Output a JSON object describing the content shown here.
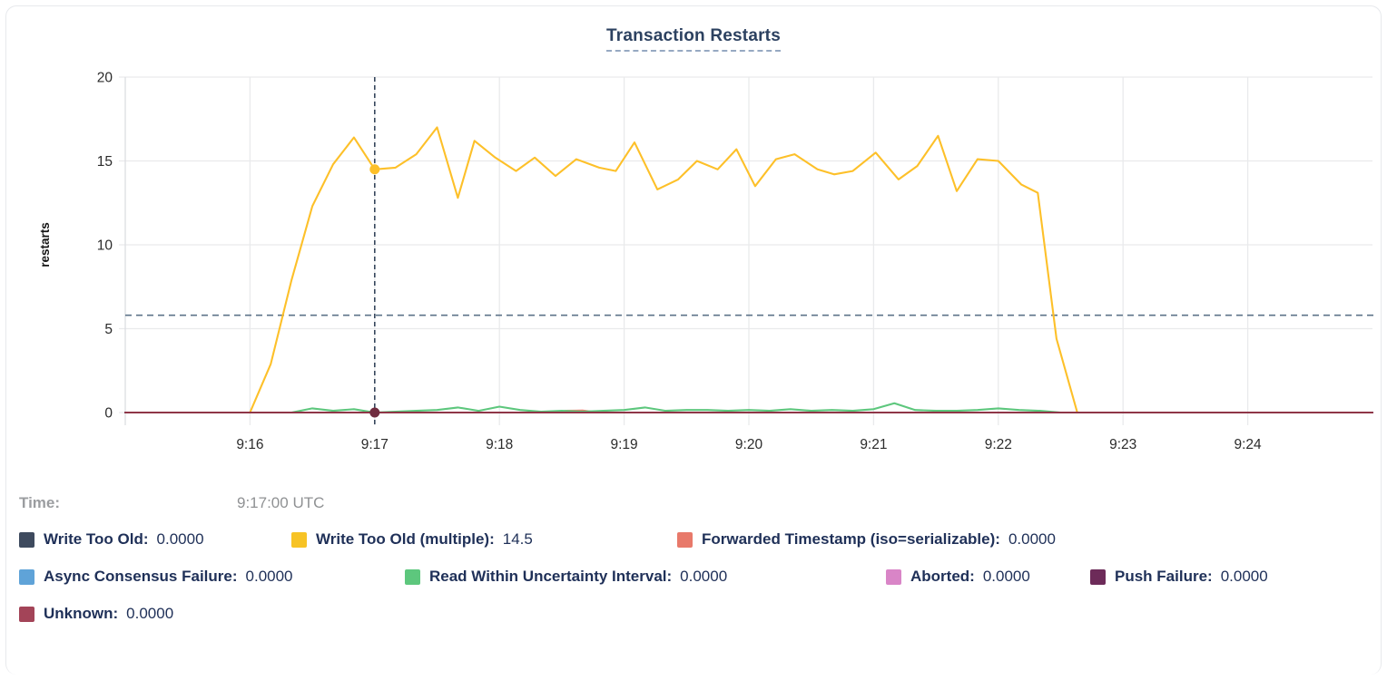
{
  "title": "Transaction Restarts",
  "tooltip": {
    "time_label": "Time:",
    "time_value": "9:17:00 UTC"
  },
  "legend": {
    "rows": [
      {
        "items": [
          {
            "label": "Write Too Old:",
            "value": "0.0000",
            "color": "#3e4a5e"
          },
          {
            "label": "Write Too Old (multiple):",
            "value": "14.5",
            "color": "#f7c325"
          },
          {
            "label": "Forwarded Timestamp (iso=serializable):",
            "value": "0.0000",
            "color": "#e8796a"
          }
        ]
      },
      {
        "items": [
          {
            "label": "Async Consensus Failure:",
            "value": "0.0000",
            "color": "#5fa3d8"
          },
          {
            "label": "Read Within Uncertainty Interval:",
            "value": "0.0000",
            "color": "#5dc77d"
          },
          {
            "label": "Aborted:",
            "value": "0.0000",
            "color": "#d985c7"
          },
          {
            "label": "Push Failure:",
            "value": "0.0000",
            "color": "#6d2b59"
          }
        ]
      },
      {
        "items": [
          {
            "label": "Unknown:",
            "value": "0.0000",
            "color": "#a34458"
          }
        ]
      }
    ]
  },
  "chart_data": {
    "type": "line",
    "title": "Transaction Restarts",
    "xlabel": "",
    "ylabel": "restarts",
    "ylim": [
      0,
      20
    ],
    "yticks": [
      0,
      5,
      10,
      15,
      20
    ],
    "x_domain": [
      "9:15:00",
      "9:25:00"
    ],
    "x_unit": "seconds after 9:15:00",
    "xticks": [
      "9:16",
      "9:17",
      "9:18",
      "9:19",
      "9:20",
      "9:21",
      "9:22",
      "9:23",
      "9:24"
    ],
    "grid": true,
    "legend_position": "below",
    "hover": {
      "time": "9:17:00 UTC",
      "t": 120,
      "hline_value": 5.8,
      "points": [
        {
          "series": "Write Too Old (multiple)",
          "value": 14.5,
          "color": "#fdc029"
        },
        {
          "series": "Unknown",
          "value": 0,
          "color": "#702c3f"
        }
      ]
    },
    "series": [
      {
        "name": "Write Too Old",
        "color": "#3e4a5e",
        "flat": 0,
        "range": [
          0,
          600
        ]
      },
      {
        "name": "Write Too Old (multiple)",
        "color": "#fdc029",
        "points": [
          [
            60,
            0
          ],
          [
            70,
            2.9
          ],
          [
            80,
            7.9
          ],
          [
            90,
            12.3
          ],
          [
            100,
            14.8
          ],
          [
            110,
            16.4
          ],
          [
            120,
            14.5
          ],
          [
            130,
            14.6
          ],
          [
            140,
            15.4
          ],
          [
            150,
            17.0
          ],
          [
            160,
            12.8
          ],
          [
            168,
            16.2
          ],
          [
            178,
            15.2
          ],
          [
            188,
            14.4
          ],
          [
            197,
            15.2
          ],
          [
            207,
            14.1
          ],
          [
            217,
            15.1
          ],
          [
            228,
            14.6
          ],
          [
            236,
            14.4
          ],
          [
            245,
            16.1
          ],
          [
            256,
            13.3
          ],
          [
            266,
            13.9
          ],
          [
            275,
            15.0
          ],
          [
            285,
            14.5
          ],
          [
            294,
            15.7
          ],
          [
            303,
            13.5
          ],
          [
            313,
            15.1
          ],
          [
            322,
            15.4
          ],
          [
            333,
            14.5
          ],
          [
            341,
            14.2
          ],
          [
            350,
            14.4
          ],
          [
            361,
            15.5
          ],
          [
            372,
            13.9
          ],
          [
            381,
            14.7
          ],
          [
            391,
            16.5
          ],
          [
            400,
            13.2
          ],
          [
            410,
            15.1
          ],
          [
            420,
            15.0
          ],
          [
            431,
            13.6
          ],
          [
            439,
            13.1
          ],
          [
            448,
            4.4
          ],
          [
            458,
            0
          ]
        ]
      },
      {
        "name": "Forwarded Timestamp (iso=serializable)",
        "color": "#e8796a",
        "points": [
          [
            0,
            0
          ],
          [
            205,
            0
          ],
          [
            212,
            0.1
          ],
          [
            220,
            0.12
          ],
          [
            228,
            0
          ],
          [
            600,
            0
          ]
        ]
      },
      {
        "name": "Async Consensus Failure",
        "color": "#5fa3d8",
        "flat": 0,
        "range": [
          0,
          600
        ]
      },
      {
        "name": "Read Within Uncertainty Interval",
        "color": "#5dc77d",
        "points": [
          [
            0,
            0
          ],
          [
            80,
            0
          ],
          [
            90,
            0.25
          ],
          [
            100,
            0.1
          ],
          [
            110,
            0.2
          ],
          [
            120,
            0
          ],
          [
            130,
            0.05
          ],
          [
            140,
            0.1
          ],
          [
            150,
            0.15
          ],
          [
            160,
            0.3
          ],
          [
            170,
            0.1
          ],
          [
            180,
            0.35
          ],
          [
            190,
            0.15
          ],
          [
            200,
            0.05
          ],
          [
            210,
            0.1
          ],
          [
            220,
            0.05
          ],
          [
            230,
            0.1
          ],
          [
            240,
            0.15
          ],
          [
            250,
            0.3
          ],
          [
            260,
            0.1
          ],
          [
            270,
            0.15
          ],
          [
            280,
            0.15
          ],
          [
            290,
            0.1
          ],
          [
            300,
            0.15
          ],
          [
            310,
            0.1
          ],
          [
            320,
            0.2
          ],
          [
            330,
            0.1
          ],
          [
            340,
            0.15
          ],
          [
            350,
            0.1
          ],
          [
            360,
            0.2
          ],
          [
            370,
            0.55
          ],
          [
            380,
            0.15
          ],
          [
            390,
            0.1
          ],
          [
            400,
            0.1
          ],
          [
            410,
            0.15
          ],
          [
            420,
            0.25
          ],
          [
            430,
            0.15
          ],
          [
            440,
            0.1
          ],
          [
            450,
            0
          ],
          [
            600,
            0
          ]
        ]
      },
      {
        "name": "Aborted",
        "color": "#d985c7",
        "flat": 0,
        "range": [
          0,
          600
        ]
      },
      {
        "name": "Push Failure",
        "color": "#6d2b59",
        "flat": 0,
        "range": [
          0,
          600
        ]
      },
      {
        "name": "Unknown",
        "color": "#8f3647",
        "flat": 0,
        "range": [
          0,
          600
        ]
      }
    ]
  },
  "colors": {
    "grid": "#e9eaec",
    "axis": "#dcdee2",
    "tick_text": "#2b2b2b",
    "crosshair": "#36465c",
    "threshold": "#5d7389",
    "title_text": "#2c4160",
    "legend_text": "#1f3058"
  }
}
